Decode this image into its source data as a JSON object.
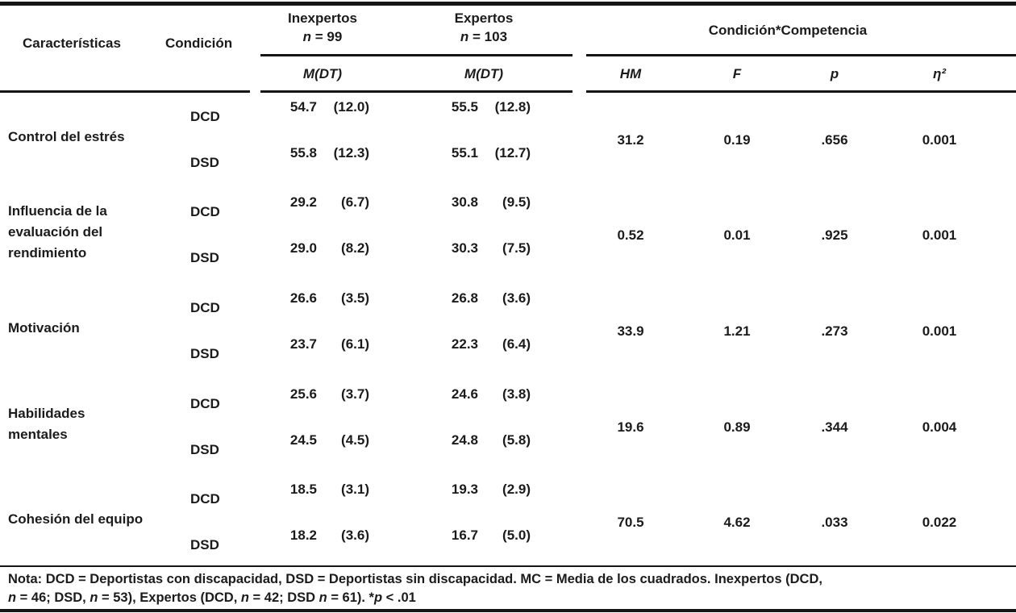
{
  "colors": {
    "background": "#ffffff",
    "text": "#1b1b1b",
    "rule": "#151515"
  },
  "table": {
    "headers": {
      "caracteristicas": "Características",
      "condicion": "Condición",
      "inexpertos": {
        "label": "Inexpertos",
        "n_line": [
          {
            "t": "n",
            "i": true
          },
          {
            "t": " = 99"
          }
        ]
      },
      "expertos": {
        "label": "Expertos",
        "n_line": [
          {
            "t": "n",
            "i": true
          },
          {
            "t": " = 103"
          }
        ]
      },
      "interaction": "Condición*Competencia",
      "mdt1": "M(DT)",
      "mdt2": "M(DT)",
      "hm": "HM",
      "f": "F",
      "p": "p",
      "eta2": "η²"
    },
    "rows": [
      {
        "caracteristica": "Control del estrés",
        "dcd": {
          "label": "DCD",
          "inexpertos_m": "54.7",
          "inexpertos_dt": "(12.0)",
          "expertos_m": "55.5",
          "expertos_dt": "(12.8)"
        },
        "dsd": {
          "label": "DSD",
          "inexpertos_m": "55.8",
          "inexpertos_dt": "(12.3)",
          "expertos_m": "55.1",
          "expertos_dt": "(12.7)"
        },
        "hm": "31.2",
        "f": "0.19",
        "p": ".656",
        "eta2": "0.001"
      },
      {
        "caracteristica": "Influencia de la\nevaluación del\nrendimiento",
        "dcd": {
          "label": "DCD",
          "inexpertos_m": "29.2",
          "inexpertos_dt": "(6.7)",
          "expertos_m": "30.8",
          "expertos_dt": "(9.5)"
        },
        "dsd": {
          "label": "DSD",
          "inexpertos_m": "29.0",
          "inexpertos_dt": "(8.2)",
          "expertos_m": "30.3",
          "expertos_dt": "(7.5)"
        },
        "hm": "0.52",
        "f": "0.01",
        "p": ".925",
        "eta2": "0.001"
      },
      {
        "caracteristica": "Motivación",
        "dcd": {
          "label": "DCD",
          "inexpertos_m": "26.6",
          "inexpertos_dt": "(3.5)",
          "expertos_m": "26.8",
          "expertos_dt": "(3.6)"
        },
        "dsd": {
          "label": "DSD",
          "inexpertos_m": "23.7",
          "inexpertos_dt": "(6.1)",
          "expertos_m": "22.3",
          "expertos_dt": "(6.4)"
        },
        "hm": "33.9",
        "f": "1.21",
        "p": ".273",
        "eta2": "0.001"
      },
      {
        "caracteristica": "Habilidades\nmentales",
        "dcd": {
          "label": "DCD",
          "inexpertos_m": "25.6",
          "inexpertos_dt": "(3.7)",
          "expertos_m": "24.6",
          "expertos_dt": "(3.8)"
        },
        "dsd": {
          "label": "DSD",
          "inexpertos_m": "24.5",
          "inexpertos_dt": "(4.5)",
          "expertos_m": "24.8",
          "expertos_dt": "(5.8)"
        },
        "hm": "19.6",
        "f": "0.89",
        "p": ".344",
        "eta2": "0.004"
      },
      {
        "caracteristica": "Cohesión del equipo",
        "dcd": {
          "label": "DCD",
          "inexpertos_m": "18.5",
          "inexpertos_dt": "(3.1)",
          "expertos_m": "19.3",
          "expertos_dt": "(2.9)"
        },
        "dsd": {
          "label": "DSD",
          "inexpertos_m": "18.2",
          "inexpertos_dt": "(3.6)",
          "expertos_m": "16.7",
          "expertos_dt": "(5.0)"
        },
        "hm": "70.5",
        "f": "4.62",
        "p": ".033",
        "eta2": "0.022"
      }
    ]
  },
  "note": {
    "line1": [
      {
        "t": "Nota: DCD = Deportistas con discapacidad, DSD = Deportistas sin discapacidad. MC = Media de los cuadrados. Inexpertos (DCD,"
      }
    ],
    "line2": [
      {
        "t": "n",
        "i": true
      },
      {
        "t": " = 46; DSD, "
      },
      {
        "t": "n",
        "i": true
      },
      {
        "t": " = 53), Expertos (DCD, "
      },
      {
        "t": "n",
        "i": true
      },
      {
        "t": " = 42; DSD "
      },
      {
        "t": "n",
        "i": true
      },
      {
        "t": " = 61). *"
      },
      {
        "t": "p",
        "i": true
      },
      {
        "t": " < .01"
      }
    ]
  }
}
